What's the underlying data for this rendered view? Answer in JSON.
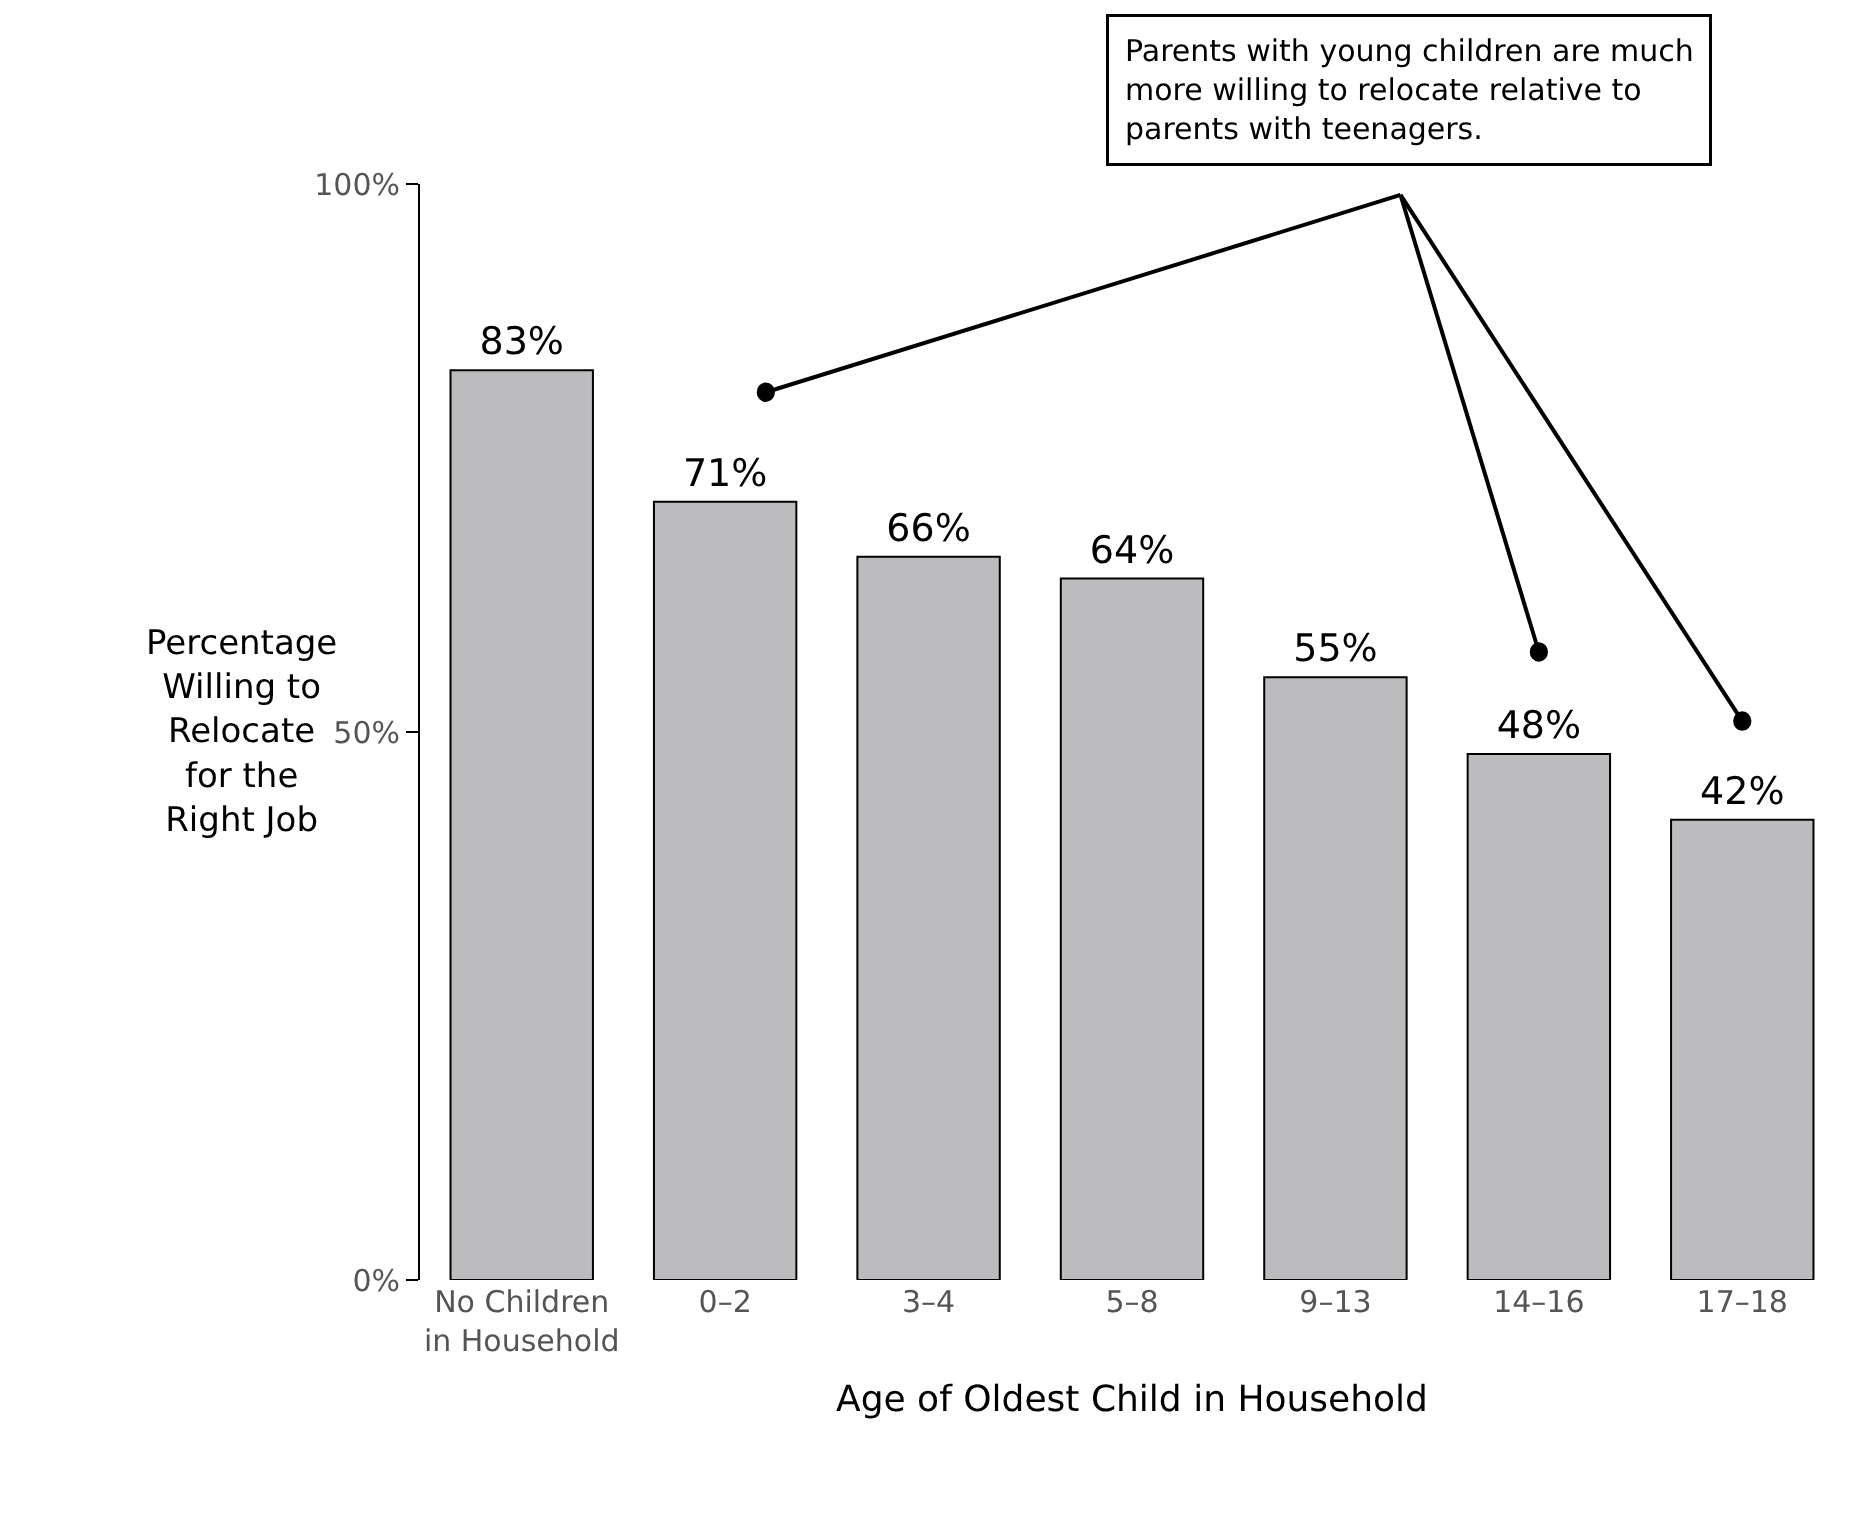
{
  "chart_data": {
    "type": "bar",
    "categories": [
      "No Children\nin Household",
      "0–2",
      "3–4",
      "5–8",
      "9–13",
      "14–16",
      "17–18"
    ],
    "values": [
      83,
      71,
      66,
      64,
      55,
      48,
      42
    ],
    "value_labels": [
      "83%",
      "71%",
      "66%",
      "64%",
      "55%",
      "48%",
      "42%"
    ],
    "color": "#bcbcbe",
    "xlabel": "Age of Oldest Child in Household",
    "ylabel": "Percentage\nWilling to\nRelocate\nfor the\nRight Job",
    "ylim": [
      0,
      100
    ],
    "yticks": [
      {
        "value": 0,
        "label": "0%"
      },
      {
        "value": 50,
        "label": "50%"
      },
      {
        "value": 100,
        "label": "100%"
      }
    ],
    "annotations": [
      "Parents with young children are much\nmore willing to relocate relative to\nparents with teenagers."
    ]
  }
}
